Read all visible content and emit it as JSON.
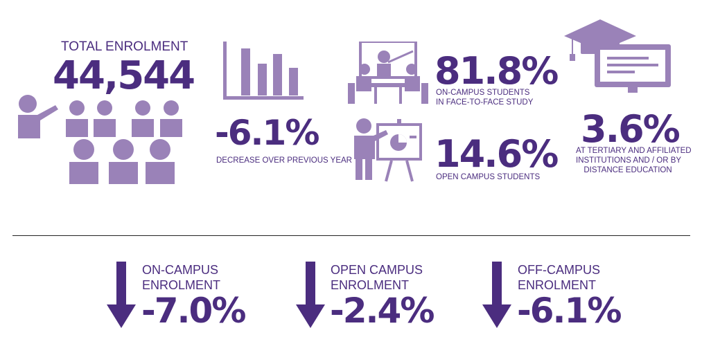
{
  "colors": {
    "dark_purple": "#4b2d7f",
    "light_purple": "#9a82b8"
  },
  "total": {
    "label": "TOTAL ENROLMENT",
    "value": "44,544"
  },
  "decrease": {
    "value": "-6.1%",
    "caption": "DECREASE OVER PREVIOUS YEAR"
  },
  "on_campus_face": {
    "value": "81.8%",
    "caption_line1": "ON-CAMPUS STUDENTS",
    "caption_line2": "IN FACE-TO-FACE STUDY"
  },
  "open_campus": {
    "value": "14.6%",
    "caption": "OPEN CAMPUS STUDENTS"
  },
  "tertiary": {
    "value": "3.6%",
    "caption_line1": "AT TERTIARY AND AFFILIATED",
    "caption_line2": "INSTITUTIONS AND / OR BY",
    "caption_line3": "DISTANCE EDUCATION"
  },
  "bottom": [
    {
      "line1": "ON-CAMPUS",
      "line2": "ENROLMENT",
      "value": "-7.0%"
    },
    {
      "line1": "OPEN CAMPUS",
      "line2": "ENROLMENT",
      "value": "-2.4%"
    },
    {
      "line1": "OFF-CAMPUS",
      "line2": "ENROLMENT",
      "value": "-6.1%"
    }
  ],
  "icons": {
    "people": "people-group-icon",
    "bar_chart": "bar-chart-icon",
    "classroom": "classroom-icon",
    "presenter": "presenter-icon",
    "graduation": "graduation-computer-icon",
    "arrow": "arrow-down-icon"
  }
}
